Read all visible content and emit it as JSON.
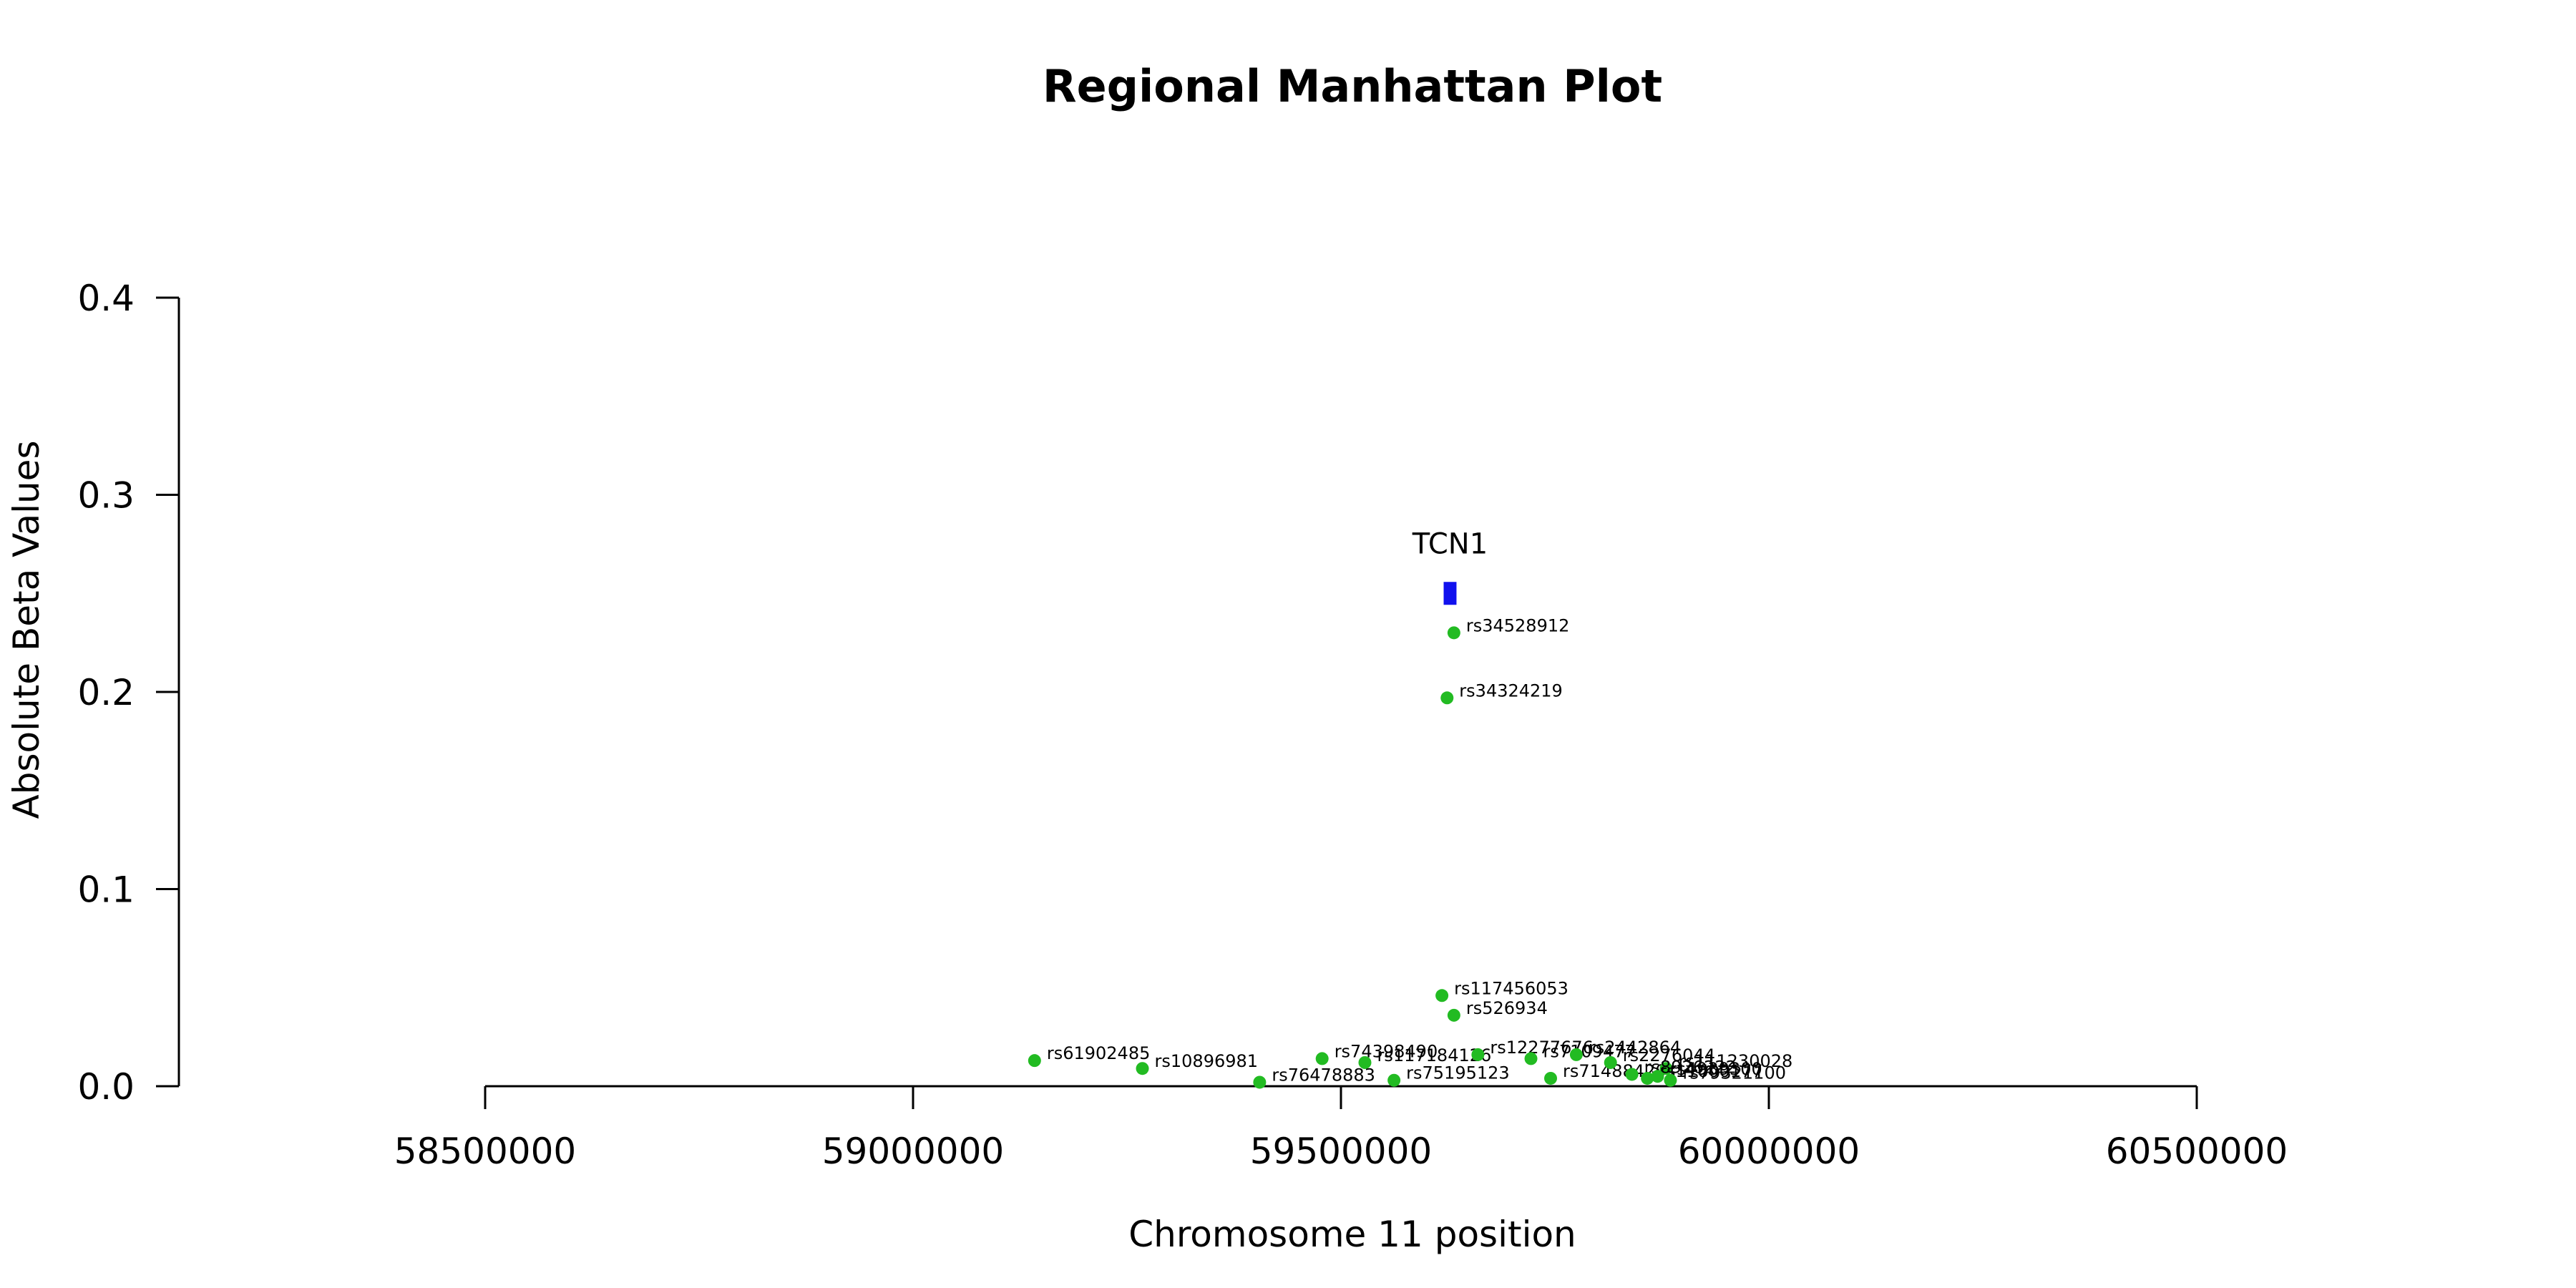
{
  "chart_data": {
    "type": "scatter",
    "title": "Regional Manhattan Plot",
    "xlabel": "Chromosome 11 position",
    "ylabel": "Absolute Beta Values",
    "xlim": [
      58500000,
      60500000
    ],
    "ylim": [
      0,
      0.4
    ],
    "x_ticks": [
      58500000,
      59000000,
      59500000,
      60000000,
      60500000
    ],
    "x_tick_labels": [
      "58500000",
      "59000000",
      "59500000",
      "60000000",
      "60500000"
    ],
    "y_ticks": [
      0.0,
      0.1,
      0.2,
      0.3,
      0.4
    ],
    "y_tick_labels": [
      "0.0",
      "0.1",
      "0.2",
      "0.3",
      "0.4"
    ],
    "grid": false,
    "point_color": "#22bb22",
    "gene_color": "#1111ee",
    "gene": {
      "name": "TCN1",
      "start": 59620000,
      "end": 59635000,
      "y": 0.25
    },
    "points": [
      {
        "label": "rs34528912",
        "x": 59632000,
        "y": 0.23
      },
      {
        "label": "rs34324219",
        "x": 59624000,
        "y": 0.197
      },
      {
        "label": "rs117456053",
        "x": 59618000,
        "y": 0.046
      },
      {
        "label": "rs526934",
        "x": 59632000,
        "y": 0.036
      },
      {
        "label": "rs61902485",
        "x": 59142000,
        "y": 0.013
      },
      {
        "label": "rs10896981",
        "x": 59268000,
        "y": 0.009
      },
      {
        "label": "rs76478883",
        "x": 59405000,
        "y": 0.002
      },
      {
        "label": "rs74398490",
        "x": 59478000,
        "y": 0.014
      },
      {
        "label": "rs117184126",
        "x": 59528000,
        "y": 0.012
      },
      {
        "label": "rs75195123",
        "x": 59562000,
        "y": 0.003
      },
      {
        "label": "rs12277676",
        "x": 59660000,
        "y": 0.016
      },
      {
        "label": "rs71488420",
        "x": 59745000,
        "y": 0.004
      },
      {
        "label": "rs7109477",
        "x": 59722000,
        "y": 0.014
      },
      {
        "label": "rs2442864",
        "x": 59775000,
        "y": 0.016
      },
      {
        "label": "rs2276044",
        "x": 59815000,
        "y": 0.012
      },
      {
        "label": "rs111230028",
        "x": 59880000,
        "y": 0.009
      },
      {
        "label": "rs8926222",
        "x": 59840000,
        "y": 0.006
      },
      {
        "label": "rs11600177",
        "x": 59858000,
        "y": 0.004
      },
      {
        "label": "rs4939300",
        "x": 59870000,
        "y": 0.005
      },
      {
        "label": "rs79321100",
        "x": 59885000,
        "y": 0.003
      }
    ]
  }
}
